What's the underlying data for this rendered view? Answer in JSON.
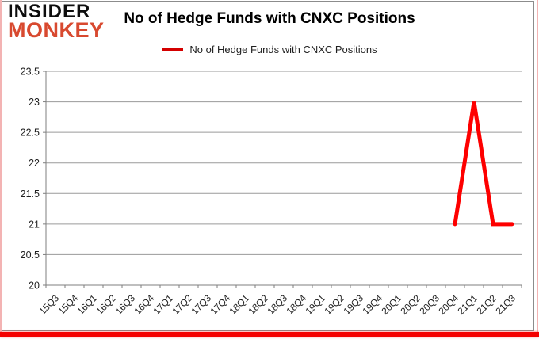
{
  "logo": {
    "line1": "INSIDER",
    "line2": "MONKEY"
  },
  "header": {
    "title": "No of Hedge Funds with CNXC Positions"
  },
  "legend": {
    "label": "No of Hedge Funds with CNXC Positions"
  },
  "colors": {
    "series_line": "#fe0000",
    "legend_marker": "#d40000",
    "gridline": "#9a9a9a",
    "axis": "#7f7f7f",
    "tick_label": "#1f1f1f",
    "title": "#000000",
    "logo_primary": "#0d0d0d",
    "logo_accent": "#d8492f",
    "frame_border": "#8c8c8c",
    "side_border": "#f3b3b3",
    "bottom_bar": "#f40000"
  },
  "chart_data": {
    "type": "line",
    "title": "No of Hedge Funds with CNXC Positions",
    "categories": [
      "15Q3",
      "15Q4",
      "16Q1",
      "16Q2",
      "16Q3",
      "16Q4",
      "17Q1",
      "17Q2",
      "17Q3",
      "17Q4",
      "18Q1",
      "18Q2",
      "18Q3",
      "18Q4",
      "19Q1",
      "19Q2",
      "19Q3",
      "19Q4",
      "20Q1",
      "20Q2",
      "20Q3",
      "20Q4",
      "21Q1",
      "21Q2",
      "21Q3"
    ],
    "series": [
      {
        "name": "No of Hedge Funds with CNXC Positions",
        "values": [
          null,
          null,
          null,
          null,
          null,
          null,
          null,
          null,
          null,
          null,
          null,
          null,
          null,
          null,
          null,
          null,
          null,
          null,
          null,
          null,
          null,
          21,
          23,
          21,
          21
        ]
      }
    ],
    "ylim": [
      20,
      23.5
    ],
    "ytick_step": 0.5,
    "grid": "horizontal",
    "legend_position": "top",
    "xlabel": "",
    "ylabel": ""
  }
}
